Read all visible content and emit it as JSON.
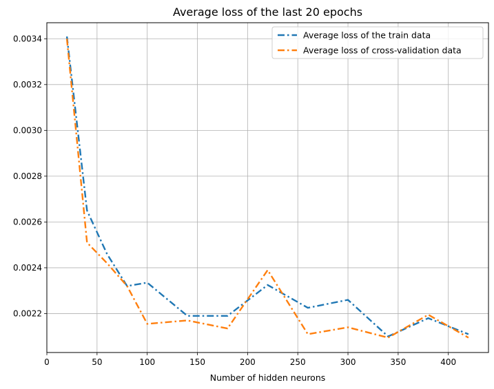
{
  "chart_data": {
    "type": "line",
    "title": "Average loss of the last 20 epochs",
    "xlabel": "Number of hidden neurons",
    "ylabel": "",
    "xlim": [
      0,
      440
    ],
    "ylim": [
      0.00203,
      0.00347
    ],
    "xticks": [
      0,
      50,
      100,
      150,
      200,
      250,
      300,
      350,
      400
    ],
    "yticks": [
      0.0022,
      0.0024,
      0.0026,
      0.0028,
      0.003,
      0.0032,
      0.0034
    ],
    "ytick_labels": [
      "0.0022",
      "0.0024",
      "0.0026",
      "0.0028",
      "0.0030",
      "0.0032",
      "0.0034"
    ],
    "grid": true,
    "legend_position": "upper right",
    "x": [
      20,
      40,
      60,
      80,
      100,
      140,
      180,
      220,
      260,
      300,
      340,
      380,
      420
    ],
    "series": [
      {
        "name": "Average loss of the train data",
        "color": "#1f77b4",
        "linestyle": "dashdot",
        "values": [
          0.00341,
          0.00265,
          0.00246,
          0.00232,
          0.002335,
          0.00219,
          0.00219,
          0.002325,
          0.002225,
          0.00226,
          0.0021,
          0.00218,
          0.00211
        ]
      },
      {
        "name": "Average loss of cross-validation data",
        "color": "#ff7f0e",
        "linestyle": "dashdot",
        "values": [
          0.0034,
          0.00251,
          0.00242,
          0.00232,
          0.002155,
          0.00217,
          0.002135,
          0.00239,
          0.00211,
          0.00214,
          0.002095,
          0.002195,
          0.002095
        ]
      }
    ]
  }
}
